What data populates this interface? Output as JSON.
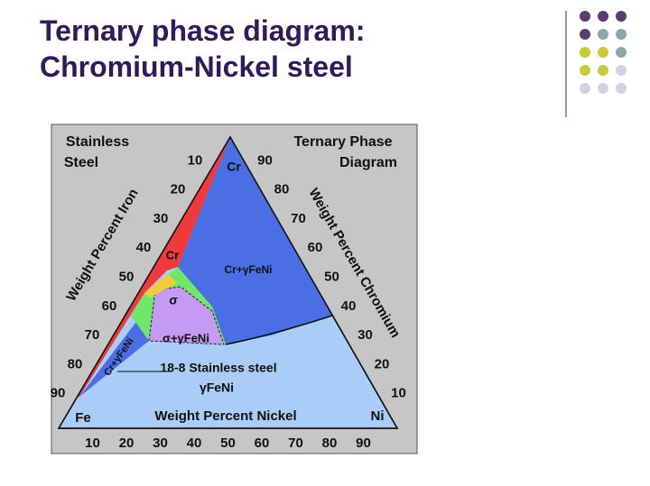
{
  "slide": {
    "title_lines": [
      "Ternary phase diagram:",
      "Chromium-Nickel steel"
    ]
  },
  "diagram": {
    "corner_note_left": [
      "Stainless",
      "Steel"
    ],
    "corner_note_right": [
      "Ternary Phase",
      "Diagram"
    ],
    "vertices": {
      "top": "Cr",
      "left": "Fe",
      "right": "Ni"
    },
    "axis_titles": {
      "left": "Weight Percent Iron",
      "right": "Weight Percent Chromium",
      "bottom": "Weight Percent Nickel"
    },
    "left_ticks": [
      10,
      20,
      30,
      40,
      50,
      60,
      70,
      80,
      90
    ],
    "right_ticks": [
      90,
      80,
      70,
      60,
      50,
      40,
      30,
      20,
      10
    ],
    "bottom_ticks": [
      10,
      20,
      30,
      40,
      50,
      60,
      70,
      80,
      90
    ],
    "regions": {
      "cr_gamma_upper": "Cr+γFeNi",
      "cr": "Cr",
      "sigma": "σ",
      "sigma_gamma": "σ+γFeNi",
      "cr_gamma_lower": "Cr+γFeNi",
      "stainless_18_8": "18-8 Stainless steel",
      "gamma": "γFeNi"
    }
  }
}
